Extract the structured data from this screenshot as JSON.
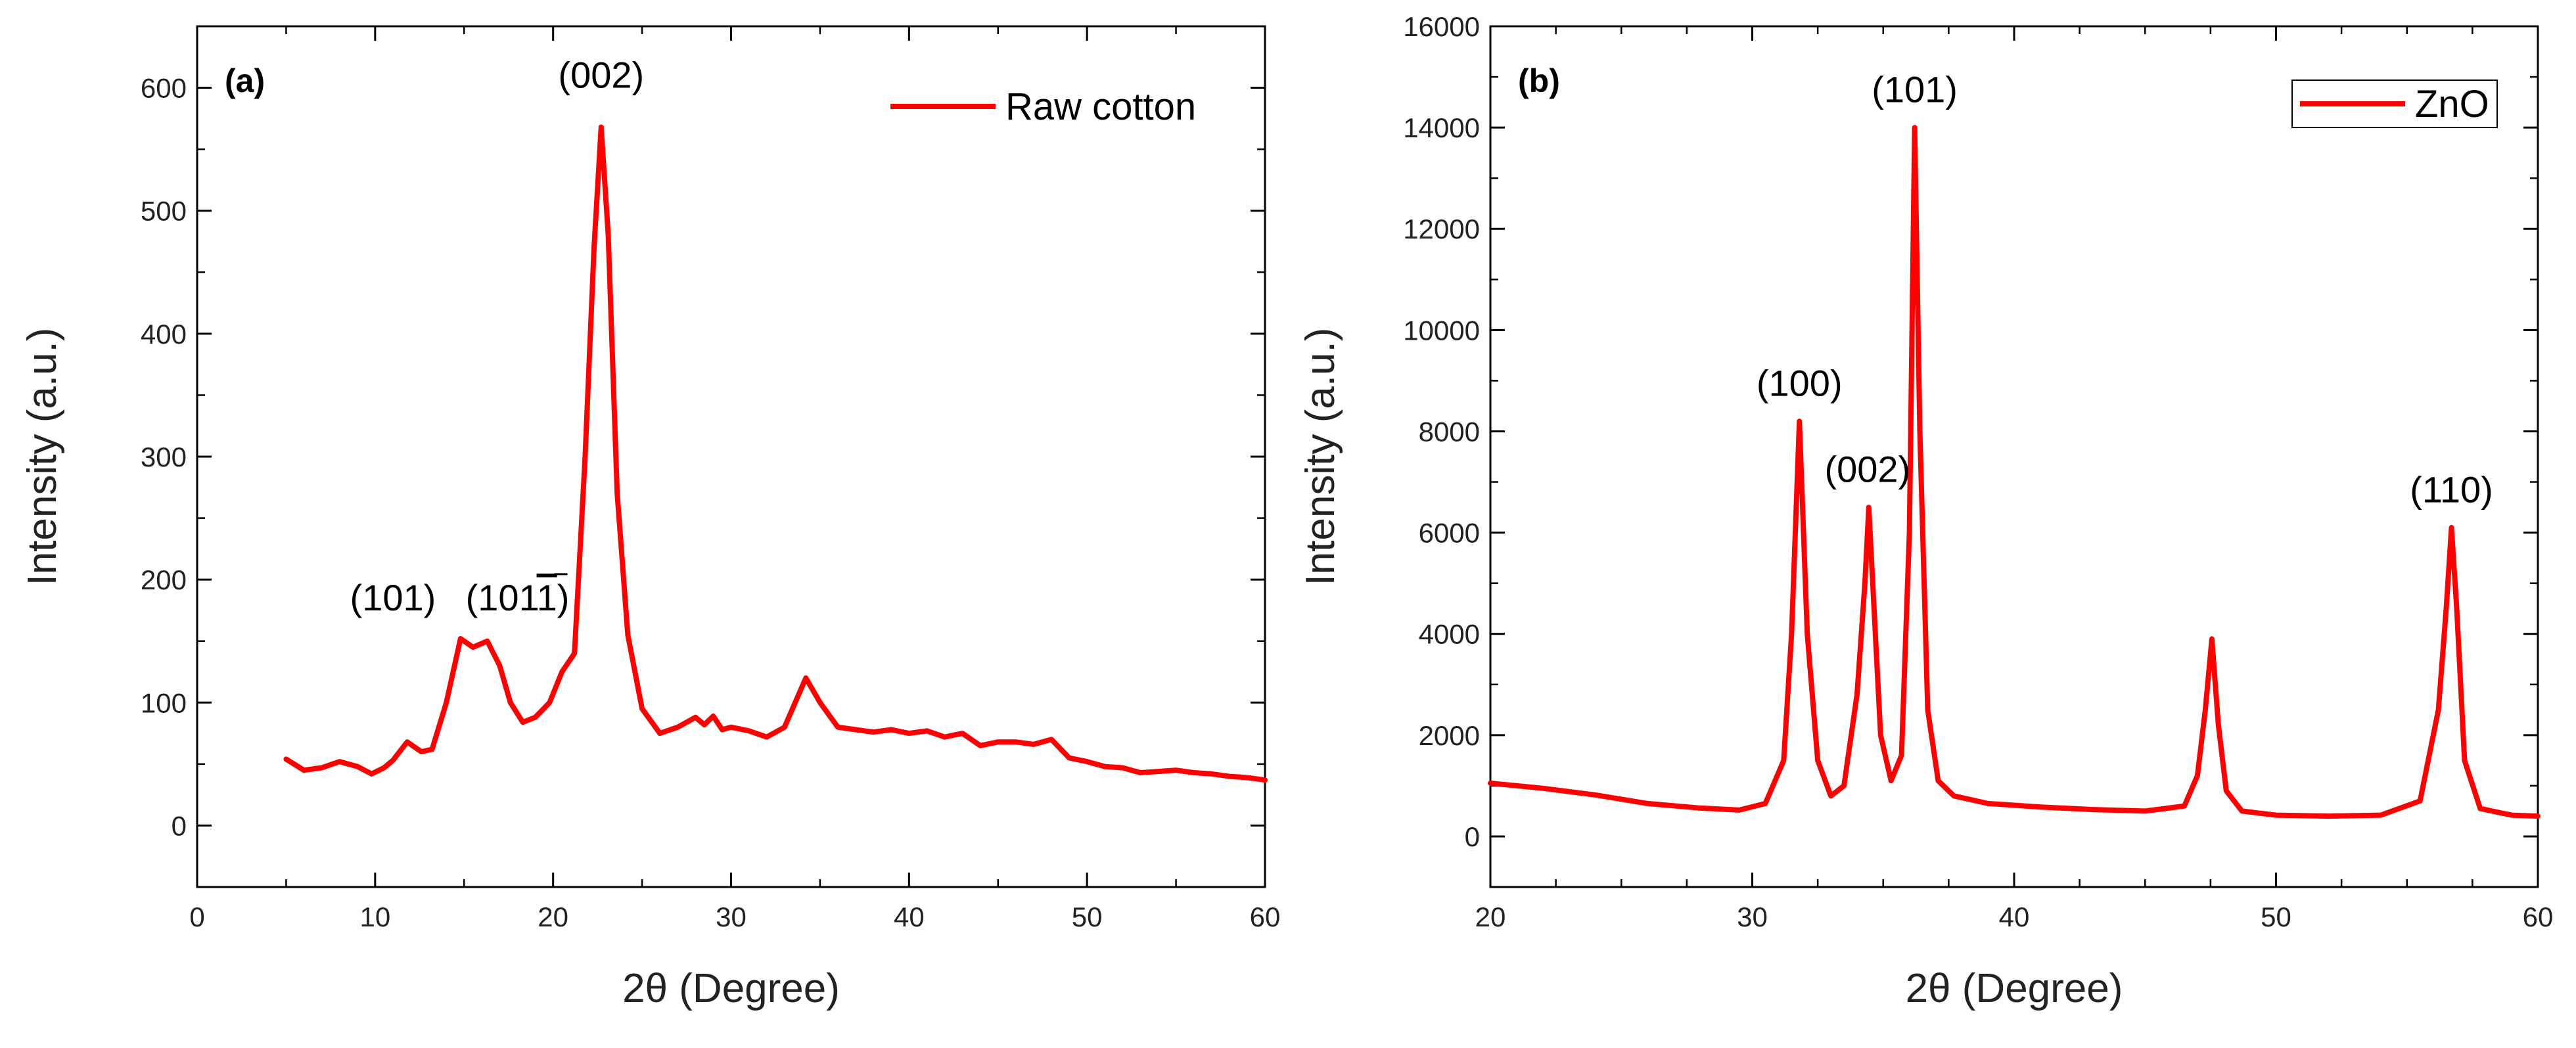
{
  "chart_data": [
    {
      "panel": "(a)",
      "type": "line",
      "xlabel": "2θ (Degree)",
      "ylabel": "Intensity (a.u.)",
      "xlim": [
        0,
        60
      ],
      "ylim": [
        -50,
        650
      ],
      "xticks": [
        0,
        10,
        20,
        30,
        40,
        50,
        60
      ],
      "yticks": [
        0,
        100,
        200,
        300,
        400,
        500,
        600
      ],
      "legend": "top-right",
      "series": [
        {
          "name": "Raw cotton",
          "color": "#ff0000",
          "x": [
            5,
            6,
            7,
            8,
            9,
            9.8,
            10.5,
            11,
            11.8,
            12.6,
            13.2,
            14,
            14.8,
            15.5,
            16.3,
            17,
            17.6,
            18.3,
            19,
            19.8,
            20.5,
            21.2,
            21.8,
            22.3,
            22.7,
            23.1,
            23.6,
            24.2,
            25,
            26,
            27,
            28,
            28.5,
            29,
            29.5,
            30,
            31,
            32,
            33,
            34.2,
            35,
            36,
            37,
            38,
            39,
            40,
            41,
            42,
            43,
            44,
            45,
            46,
            47,
            48,
            49,
            50,
            51,
            52,
            53,
            54,
            55,
            56,
            57,
            58,
            59,
            60
          ],
          "y": [
            54,
            45,
            47,
            52,
            48,
            42,
            47,
            53,
            68,
            60,
            62,
            100,
            152,
            145,
            150,
            130,
            100,
            84,
            88,
            100,
            125,
            140,
            300,
            470,
            568,
            480,
            270,
            155,
            95,
            75,
            80,
            88,
            82,
            89,
            78,
            80,
            77,
            72,
            80,
            120,
            100,
            80,
            78,
            76,
            78,
            75,
            77,
            72,
            75,
            65,
            68,
            68,
            66,
            70,
            55,
            52,
            48,
            47,
            43,
            44,
            45,
            43,
            42,
            40,
            39,
            37
          ]
        }
      ],
      "annotations": [
        {
          "text": "(002)",
          "x": 22.7,
          "y": 600
        },
        {
          "text": "(101)",
          "x": 11,
          "y": 175
        },
        {
          "text": "(101",
          "overbar": "1",
          "close": ")",
          "x": 18,
          "y": 175
        }
      ]
    },
    {
      "panel": "(b)",
      "type": "line",
      "xlabel": "2θ (Degree)",
      "ylabel": "Intensity (a.u.)",
      "xlim": [
        20,
        60
      ],
      "ylim": [
        -1000,
        16000
      ],
      "xticks": [
        20,
        30,
        40,
        50,
        60
      ],
      "yticks": [
        0,
        2000,
        4000,
        6000,
        8000,
        10000,
        12000,
        14000,
        16000
      ],
      "legend": "top-right",
      "series": [
        {
          "name": "ZnO",
          "color": "#ff0000",
          "x": [
            20,
            22,
            24,
            26,
            28,
            29.5,
            30.5,
            31.2,
            31.5,
            31.8,
            32.1,
            32.5,
            33,
            33.5,
            34,
            34.3,
            34.45,
            34.6,
            34.9,
            35.3,
            35.7,
            36,
            36.2,
            36.4,
            36.7,
            37.1,
            37.7,
            39,
            41,
            43,
            45,
            46.5,
            47,
            47.3,
            47.55,
            47.8,
            48.1,
            48.7,
            50,
            52,
            54,
            55.5,
            56.2,
            56.5,
            56.7,
            56.9,
            57.2,
            57.8,
            59,
            60
          ],
          "y": [
            1050,
            950,
            820,
            650,
            560,
            520,
            650,
            1500,
            4000,
            8200,
            4000,
            1500,
            800,
            1000,
            2800,
            5000,
            6500,
            5000,
            2000,
            1100,
            1600,
            6000,
            14000,
            8000,
            2500,
            1100,
            800,
            650,
            580,
            530,
            500,
            600,
            1200,
            2500,
            3900,
            2200,
            900,
            500,
            420,
            400,
            420,
            700,
            2500,
            4500,
            6100,
            4500,
            1500,
            550,
            420,
            400
          ]
        }
      ],
      "annotations": [
        {
          "text": "(101)",
          "x": 36.2,
          "y": 14500
        },
        {
          "text": "(100)",
          "x": 31.8,
          "y": 8700
        },
        {
          "text": "(002)",
          "x": 34.4,
          "y": 7000
        },
        {
          "text": "(110)",
          "x": 56.7,
          "y": 6600
        }
      ]
    }
  ]
}
